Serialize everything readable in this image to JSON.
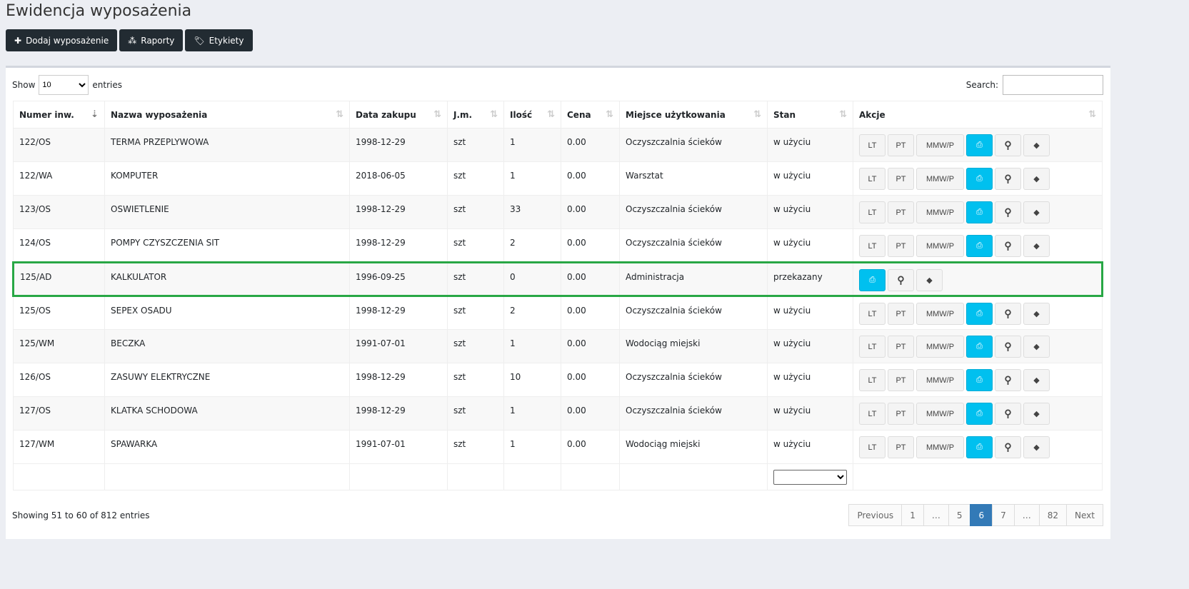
{
  "title": "Ewidencja wyposażenia",
  "toolbar": {
    "add": "Dodaj wyposażenie",
    "reports": "Raporty",
    "labels": "Etykiety"
  },
  "table_controls": {
    "show": "Show",
    "entries": "entries",
    "page_size": "10",
    "search": "Search:",
    "search_value": ""
  },
  "columns": [
    "Numer inw.",
    "Nazwa wyposażenia",
    "Data zakupu",
    "J.m.",
    "Ilość",
    "Cena",
    "Miejsce użytkowania",
    "Stan",
    "Akcje"
  ],
  "actions": {
    "lt": "LT",
    "pt": "PT",
    "mmw": "MMW/P"
  },
  "rows": [
    [
      "122/OS",
      "TERMA PRZEPLYWOWA",
      "1998-12-29",
      "szt",
      "1",
      "0.00",
      "Oczyszczalnia ścieków",
      "w użyciu"
    ],
    [
      "122/WA",
      "KOMPUTER",
      "2018-06-05",
      "szt",
      "1",
      "0.00",
      "Warsztat",
      "w użyciu"
    ],
    [
      "123/OS",
      "OSWIETLENIE",
      "1998-12-29",
      "szt",
      "33",
      "0.00",
      "Oczyszczalnia ścieków",
      "w użyciu"
    ],
    [
      "124/OS",
      "POMPY CZYSZCZENIA SIT",
      "1998-12-29",
      "szt",
      "2",
      "0.00",
      "Oczyszczalnia ścieków",
      "w użyciu"
    ],
    [
      "125/AD",
      "KALKULATOR",
      "1996-09-25",
      "szt",
      "0",
      "0.00",
      "Administracja",
      "przekazany"
    ],
    [
      "125/OS",
      "SEPEX OSADU",
      "1998-12-29",
      "szt",
      "2",
      "0.00",
      "Oczyszczalnia ścieków",
      "w użyciu"
    ],
    [
      "125/WM",
      "BECZKA",
      "1991-07-01",
      "szt",
      "1",
      "0.00",
      "Wodociąg miejski",
      "w użyciu"
    ],
    [
      "126/OS",
      "ZASUWY ELEKTRYCZNE",
      "1998-12-29",
      "szt",
      "10",
      "0.00",
      "Oczyszczalnia ścieków",
      "w użyciu"
    ],
    [
      "127/OS",
      "KLATKA SCHODOWA",
      "1998-12-29",
      "szt",
      "1",
      "0.00",
      "Oczyszczalnia ścieków",
      "w użyciu"
    ],
    [
      "127/WM",
      "SPAWARKA",
      "1991-07-01",
      "szt",
      "1",
      "0.00",
      "Wodociąg miejski",
      "w użyciu"
    ]
  ],
  "highlighted_row": 4,
  "info": "Showing 51 to 60 of 812 entries",
  "pagination": [
    "Previous",
    "1",
    "…",
    "5",
    "6",
    "7",
    "…",
    "82",
    "Next"
  ],
  "active_page": "6",
  "colors": {
    "accent": "#00c0ef",
    "highlight": "#28a745",
    "active_page": "#337ab7",
    "toolbar": "#222b32"
  }
}
